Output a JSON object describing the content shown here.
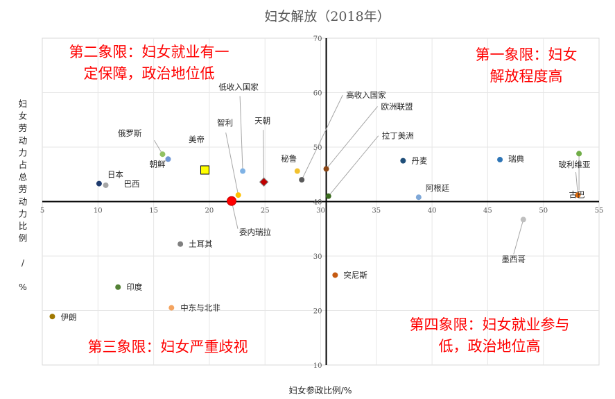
{
  "chart_data": {
    "type": "scatter",
    "title": "妇女解放（2018年）",
    "xlabel": "妇女参政比例/%",
    "ylabel": "妇女劳动力占总劳动力比例 / %",
    "xlim": [
      5,
      55
    ],
    "ylim": [
      10,
      70
    ],
    "x_ticks": [
      5,
      10,
      15,
      20,
      25,
      30,
      35,
      40,
      45,
      50,
      55
    ],
    "y_ticks": [
      10,
      20,
      30,
      40,
      50,
      60,
      70
    ],
    "x_cross": 30.5,
    "y_cross": 40,
    "grid": true,
    "points": [
      {
        "label": "日本",
        "x": 10.1,
        "y": 43.3,
        "color": "#1f3b6e"
      },
      {
        "label": "巴西",
        "x": 10.7,
        "y": 43.0,
        "color": "#a6a6a6"
      },
      {
        "label": "俄罗斯",
        "x": 15.8,
        "y": 48.7,
        "color": "#92c163"
      },
      {
        "label": "朝鲜",
        "x": 16.3,
        "y": 47.8,
        "color": "#6f97d6"
      },
      {
        "label": "美帝",
        "x": 19.6,
        "y": 45.8,
        "color": "#ffff00",
        "marker": "square"
      },
      {
        "label": "智利",
        "x": 22.6,
        "y": 41.2,
        "color": "#ffc000"
      },
      {
        "label": "委内瑞拉",
        "x": 22.0,
        "y": 40.1,
        "color": "#ff0000",
        "marker": "large"
      },
      {
        "label": "低收入国家",
        "x": 23.0,
        "y": 45.6,
        "color": "#7fb2e5"
      },
      {
        "label": "天朝",
        "x": 24.9,
        "y": 43.6,
        "color": "#c00000",
        "marker": "diamond"
      },
      {
        "label": "秘鲁",
        "x": 27.9,
        "y": 45.6,
        "color": "#f2c12e"
      },
      {
        "label": "高收入国家",
        "x": 28.3,
        "y": 44.0,
        "color": "#595959"
      },
      {
        "label": "欧洲联盟",
        "x": 30.5,
        "y": 46.0,
        "color": "#8b4513"
      },
      {
        "label": "拉丁美洲",
        "x": 30.7,
        "y": 41.0,
        "color": "#3a6b1e"
      },
      {
        "label": "土耳其",
        "x": 17.4,
        "y": 32.2,
        "color": "#7f7f7f"
      },
      {
        "label": "印度",
        "x": 11.8,
        "y": 24.3,
        "color": "#538135"
      },
      {
        "label": "中东与北非",
        "x": 16.6,
        "y": 20.5,
        "color": "#f4a460"
      },
      {
        "label": "伊朗",
        "x": 5.9,
        "y": 18.9,
        "color": "#a07800"
      },
      {
        "label": "丹麦",
        "x": 37.4,
        "y": 47.5,
        "color": "#1f4e79"
      },
      {
        "label": "瑞典",
        "x": 46.1,
        "y": 47.7,
        "color": "#2e75b6"
      },
      {
        "label": "阿根廷",
        "x": 38.8,
        "y": 40.8,
        "color": "#7fa8d8"
      },
      {
        "label": "玻利维亚",
        "x": 53.1,
        "y": 41.2,
        "color": "#e46c0a"
      },
      {
        "label": "古巴",
        "x": 53.2,
        "y": 48.8,
        "color": "#70ad47"
      },
      {
        "label": "墨西哥",
        "x": 48.2,
        "y": 36.7,
        "color": "#bfbfbf"
      },
      {
        "label": "突尼斯",
        "x": 31.3,
        "y": 26.5,
        "color": "#c55a11"
      }
    ],
    "quadrants": {
      "q1": [
        "第一象限：妇女",
        "解放程度高"
      ],
      "q2": [
        "第二象限：妇女就业有一",
        "定保障，政治地位低"
      ],
      "q3": [
        "第三象限：妇女严重歧视"
      ],
      "q4": [
        "第四象限：妇女就业参与",
        "低，政治地位高"
      ]
    }
  }
}
